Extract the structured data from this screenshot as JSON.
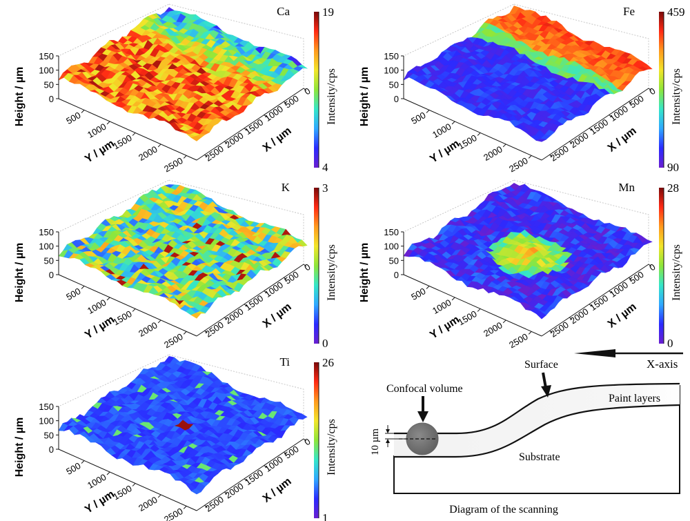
{
  "chart_data": [
    {
      "type": "heatmap",
      "element": "Ca",
      "colorbar": {
        "min": 4,
        "max": 19,
        "label": "Intensity/cps"
      },
      "axes": {
        "height": {
          "label": "Height / µm",
          "ticks": [
            0,
            50,
            100,
            150
          ]
        },
        "y": {
          "label": "Y / µm",
          "ticks": [
            500,
            1000,
            1500,
            2000,
            2500
          ]
        },
        "x": {
          "label": "X / µm",
          "ticks": [
            0,
            500,
            1000,
            1500,
            2000,
            2500
          ]
        }
      },
      "pattern": "high intensity across most of surface, lower toward far edge"
    },
    {
      "type": "heatmap",
      "element": "Fe",
      "colorbar": {
        "min": 90,
        "max": 459,
        "label": "Intensity/cps"
      },
      "axes": {
        "height": {
          "label": "Height / µm",
          "ticks": [
            0,
            50,
            100,
            150
          ]
        },
        "y": {
          "label": "Y / µm",
          "ticks": [
            500,
            1000,
            1500,
            2000,
            2500
          ]
        },
        "x": {
          "label": "X / µm",
          "ticks": [
            0,
            500,
            1000,
            1500,
            2000,
            2500
          ]
        }
      },
      "pattern": "high intensity band along far edge, low elsewhere"
    },
    {
      "type": "heatmap",
      "element": "K",
      "colorbar": {
        "min": 0,
        "max": 3,
        "label": "Intensity/cps"
      },
      "axes": {
        "height": {
          "label": "Height / µm",
          "ticks": [
            0,
            50,
            100,
            150
          ]
        },
        "y": {
          "label": "Y / µm",
          "ticks": [
            500,
            1000,
            1500,
            2000,
            2500
          ]
        },
        "x": {
          "label": "X / µm",
          "ticks": [
            0,
            500,
            1000,
            1500,
            2000,
            2500
          ]
        }
      },
      "pattern": "speckled mid-level intensity with scattered hot spots"
    },
    {
      "type": "heatmap",
      "element": "Mn",
      "colorbar": {
        "min": 0,
        "max": 28,
        "label": "Intensity/cps"
      },
      "axes": {
        "height": {
          "label": "Height / µm",
          "ticks": [
            0,
            50,
            100,
            150
          ]
        },
        "y": {
          "label": "Y / µm",
          "ticks": [
            500,
            1000,
            1500,
            2000,
            2500
          ]
        },
        "x": {
          "label": "X / µm",
          "ticks": [
            0,
            500,
            1000,
            1500,
            2000,
            2500
          ]
        }
      },
      "pattern": "low background with a high intensity central patch"
    },
    {
      "type": "heatmap",
      "element": "Ti",
      "colorbar": {
        "min": 1,
        "max": 26,
        "label": "Intensity/cps"
      },
      "axes": {
        "height": {
          "label": "Height / µm",
          "ticks": [
            0,
            50,
            100,
            150
          ]
        },
        "y": {
          "label": "Y / µm",
          "ticks": [
            500,
            1000,
            1500,
            2000,
            2500
          ]
        },
        "x": {
          "label": "X / µm",
          "ticks": [
            0,
            500,
            1000,
            1500,
            2000,
            2500
          ]
        }
      },
      "pattern": "low background with scattered small spots and one hot spot"
    }
  ],
  "diagram": {
    "title": "Diagram of the scanning",
    "x_axis_label": "X-axis",
    "surface_label": "Surface",
    "confocal_label": "Confocal volume",
    "paint_label": "Paint layers",
    "substrate_label": "Substrate",
    "depth_label": "10 µm"
  },
  "colors": {
    "colormap": [
      "#6a1fd0",
      "#2b2bff",
      "#2fa8ff",
      "#35e6c8",
      "#8ee63a",
      "#f2e52a",
      "#ff9a1e",
      "#ff2a14",
      "#7a0a0a"
    ],
    "outline": "#111111"
  }
}
